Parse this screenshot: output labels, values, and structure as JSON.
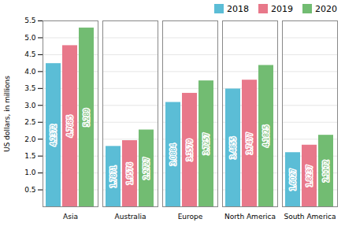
{
  "chart_data": {
    "type": "bar",
    "categories": [
      "Asia",
      "Australia",
      "Europe",
      "North America",
      "South America"
    ],
    "series": [
      {
        "name": "2018",
        "color": "#5bbdd6",
        "values": [
          4.2372,
          1.7871,
          3.0884,
          3.4855,
          1.6027
        ]
      },
      {
        "name": "2019",
        "color": "#e8788a",
        "values": [
          4.7685,
          1.9576,
          3.3579,
          3.7477,
          1.8237
        ]
      },
      {
        "name": "2020",
        "color": "#72bc72",
        "values": [
          5.289,
          2.2727,
          3.7257,
          4.1825,
          2.1172
        ]
      }
    ],
    "ylabel": "US dollars, in millions",
    "ylim": [
      0,
      5.5
    ],
    "yticks": [
      0.5,
      {
        "value": 1,
        "label": "1.0"
      },
      1.5,
      {
        "value": 2,
        "label": "2.0"
      },
      2.5,
      {
        "value": 3,
        "label": "3.0"
      },
      3.5,
      {
        "value": 4,
        "label": "4.0"
      },
      4.5,
      {
        "value": 5,
        "label": "5.0"
      },
      5.5
    ],
    "grid": true,
    "legend": "upper right",
    "data_labels": true
  }
}
